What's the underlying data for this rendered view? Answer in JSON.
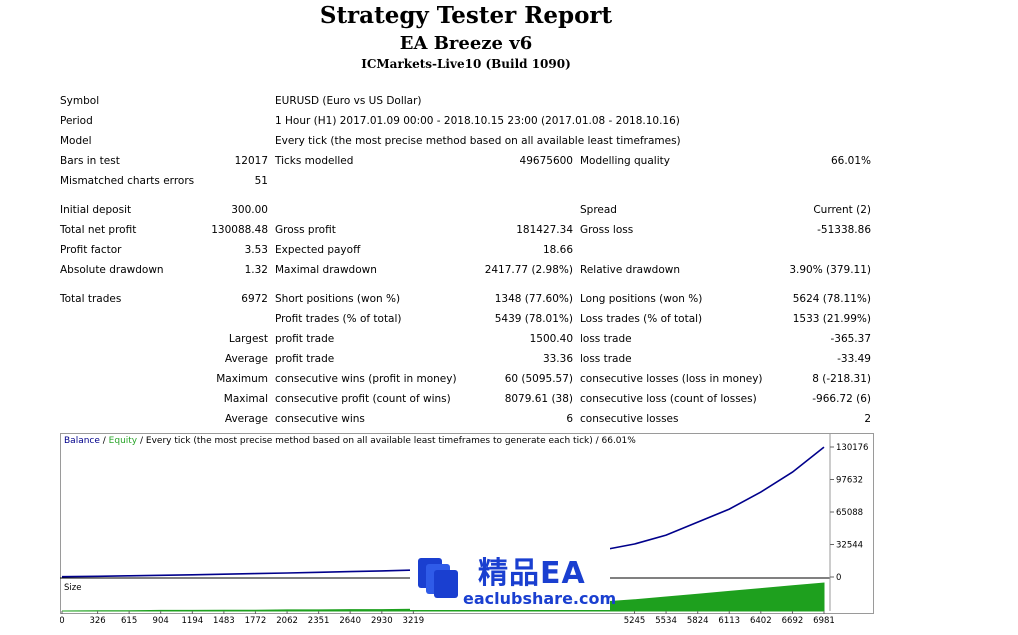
{
  "header": {
    "title": "Strategy Tester Report",
    "ea_name": "EA Breeze v6",
    "server": "ICMarkets-Live10 (Build 1090)"
  },
  "info": {
    "symbol_label": "Symbol",
    "symbol_value": "EURUSD (Euro vs US Dollar)",
    "period_label": "Period",
    "period_value": "1 Hour (H1) 2017.01.09 00:00 - 2018.10.15 23:00 (2017.01.08 - 2018.10.16)",
    "model_label": "Model",
    "model_value": "Every tick (the most precise method based on all available least timeframes)",
    "bars_label": "Bars in test",
    "bars_value": "12017",
    "ticks_label": "Ticks modelled",
    "ticks_value": "49675600",
    "quality_label": "Modelling quality",
    "quality_value": "66.01%",
    "mismatch_label": "Mismatched charts errors",
    "mismatch_value": "51"
  },
  "results": {
    "initial_deposit_label": "Initial deposit",
    "initial_deposit_value": "300.00",
    "spread_label": "Spread",
    "spread_value": "Current (2)",
    "net_profit_label": "Total net profit",
    "net_profit_value": "130088.48",
    "gross_profit_label": "Gross profit",
    "gross_profit_value": "181427.34",
    "gross_loss_label": "Gross loss",
    "gross_loss_value": "-51338.86",
    "profit_factor_label": "Profit factor",
    "profit_factor_value": "3.53",
    "expected_payoff_label": "Expected payoff",
    "expected_payoff_value": "18.66",
    "abs_drawdown_label": "Absolute drawdown",
    "abs_drawdown_value": "1.32",
    "max_drawdown_label": "Maximal drawdown",
    "max_drawdown_value": "2417.77 (2.98%)",
    "rel_drawdown_label": "Relative drawdown",
    "rel_drawdown_value": "3.90% (379.11)"
  },
  "trades": {
    "total_label": "Total trades",
    "total_value": "6972",
    "short_label": "Short positions (won %)",
    "short_value": "1348 (77.60%)",
    "long_label": "Long positions (won %)",
    "long_value": "5624 (78.11%)",
    "profit_trades_label": "Profit trades (% of total)",
    "profit_trades_value": "5439 (78.01%)",
    "loss_trades_label": "Loss trades (% of total)",
    "loss_trades_value": "1533 (21.99%)",
    "largest_label": "Largest",
    "largest_profit_label": "profit trade",
    "largest_profit_value": "1500.40",
    "largest_loss_label": "loss trade",
    "largest_loss_value": "-365.37",
    "average_label": "Average",
    "average_profit_label": "profit trade",
    "average_profit_value": "33.36",
    "average_loss_label": "loss trade",
    "average_loss_value": "-33.49",
    "maximum_label": "Maximum",
    "max_cons_wins_label": "consecutive wins (profit in money)",
    "max_cons_wins_value": "60 (5095.57)",
    "max_cons_losses_label": "consecutive losses (loss in money)",
    "max_cons_losses_value": "8 (-218.31)",
    "maximal_label": "Maximal",
    "maximal_profit_label": "consecutive profit (count of wins)",
    "maximal_profit_value": "8079.61 (38)",
    "maximal_loss_label": "consecutive loss (count of losses)",
    "maximal_loss_value": "-966.72 (6)",
    "average2_label": "Average",
    "avg_cons_wins_label": "consecutive wins",
    "avg_cons_wins_value": "6",
    "avg_cons_losses_label": "consecutive losses",
    "avg_cons_losses_value": "2"
  },
  "chart_header": {
    "balance": "Balance",
    "sep": " / ",
    "equity": "Equity",
    "rest": " / Every tick (the most precise method based on all available least timeframes to generate each tick) / 66.01%"
  },
  "watermark": {
    "line1": "精品EA",
    "line2": "eaclubshare.com"
  },
  "chart_data": {
    "type": "line",
    "series": [
      {
        "name": "Balance",
        "color": "#00008b"
      },
      {
        "name": "Equity",
        "color": "#2aa52a"
      }
    ],
    "x": [
      0,
      326,
      615,
      904,
      1194,
      1483,
      1772,
      2062,
      2351,
      2640,
      2930,
      3219,
      3508,
      3797,
      4087,
      4376,
      4666,
      4955,
      5245,
      5534,
      5824,
      6113,
      6402,
      6692,
      6981
    ],
    "x_tick_labels": [
      "0",
      "326",
      "615",
      "904",
      "1194",
      "1483",
      "1772",
      "2062",
      "2351",
      "2640",
      "2930",
      "3219",
      "5245",
      "5534",
      "5824",
      "6113",
      "6402",
      "6692",
      "6981"
    ],
    "y": [
      300,
      700,
      1200,
      1700,
      2200,
      2800,
      3400,
      4000,
      4700,
      5400,
      6100,
      6900,
      9000,
      11500,
      14500,
      18000,
      22000,
      27000,
      33000,
      42000,
      55000,
      68000,
      85000,
      105000,
      130088
    ],
    "y_tick_labels": [
      "130176",
      "97632",
      "65088",
      "32544",
      "0"
    ],
    "ylim": [
      0,
      130176
    ],
    "size_label": "Size",
    "size_fraction": [
      0,
      0.01,
      0.01,
      0.02,
      0.02,
      0.03,
      0.03,
      0.04,
      0.04,
      0.05,
      0.05,
      0.06,
      0.08,
      0.11,
      0.15,
      0.2,
      0.25,
      0.32,
      0.4,
      0.5,
      0.6,
      0.7,
      0.8,
      0.9,
      1.0
    ]
  }
}
